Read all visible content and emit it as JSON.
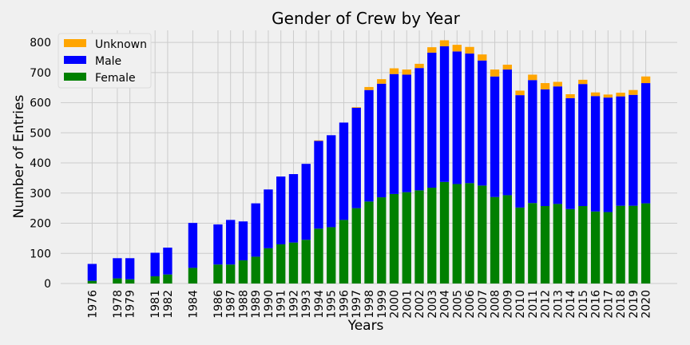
{
  "chart_data": {
    "type": "bar",
    "stacked": true,
    "title": "Gender of Crew by Year",
    "xlabel": "Years",
    "ylabel": "Number of Entries",
    "ylim": [
      0,
      840
    ],
    "yticks": [
      0,
      100,
      200,
      300,
      400,
      500,
      600,
      700,
      800
    ],
    "grid": true,
    "legend_position": "top-left",
    "categories": [
      "1976",
      "1978",
      "1979",
      "1981",
      "1982",
      "1984",
      "1986",
      "1987",
      "1988",
      "1989",
      "1990",
      "1991",
      "1992",
      "1993",
      "1994",
      "1995",
      "1996",
      "1997",
      "1998",
      "1999",
      "2000",
      "2001",
      "2002",
      "2003",
      "2004",
      "2005",
      "2006",
      "2007",
      "2008",
      "2009",
      "2010",
      "2011",
      "2012",
      "2013",
      "2014",
      "2015",
      "2016",
      "2017",
      "2018",
      "2019",
      "2020"
    ],
    "series": [
      {
        "name": "Female",
        "color": "#008000",
        "values": [
          9,
          17,
          14,
          24,
          30,
          52,
          63,
          63,
          77,
          89,
          117,
          130,
          136,
          145,
          182,
          187,
          211,
          250,
          272,
          286,
          297,
          303,
          309,
          318,
          337,
          330,
          333,
          325,
          287,
          293,
          252,
          267,
          257,
          264,
          247,
          257,
          239,
          237,
          258,
          258,
          266
        ]
      },
      {
        "name": "Male",
        "color": "#0000ff",
        "values": [
          56,
          67,
          70,
          78,
          89,
          149,
          133,
          148,
          129,
          177,
          195,
          225,
          227,
          252,
          291,
          305,
          323,
          333,
          370,
          377,
          398,
          390,
          406,
          448,
          450,
          440,
          430,
          415,
          400,
          417,
          373,
          408,
          387,
          390,
          368,
          405,
          383,
          380,
          363,
          368,
          399
        ]
      },
      {
        "name": "Unknown",
        "color": "#ffa500",
        "values": [
          0,
          0,
          0,
          0,
          0,
          0,
          0,
          0,
          0,
          0,
          0,
          0,
          0,
          0,
          2,
          0,
          0,
          2,
          10,
          15,
          19,
          17,
          14,
          18,
          20,
          22,
          22,
          20,
          23,
          16,
          15,
          18,
          21,
          15,
          13,
          14,
          12,
          10,
          12,
          16,
          22
        ]
      }
    ],
    "legend_order": [
      "Unknown",
      "Male",
      "Female"
    ]
  }
}
